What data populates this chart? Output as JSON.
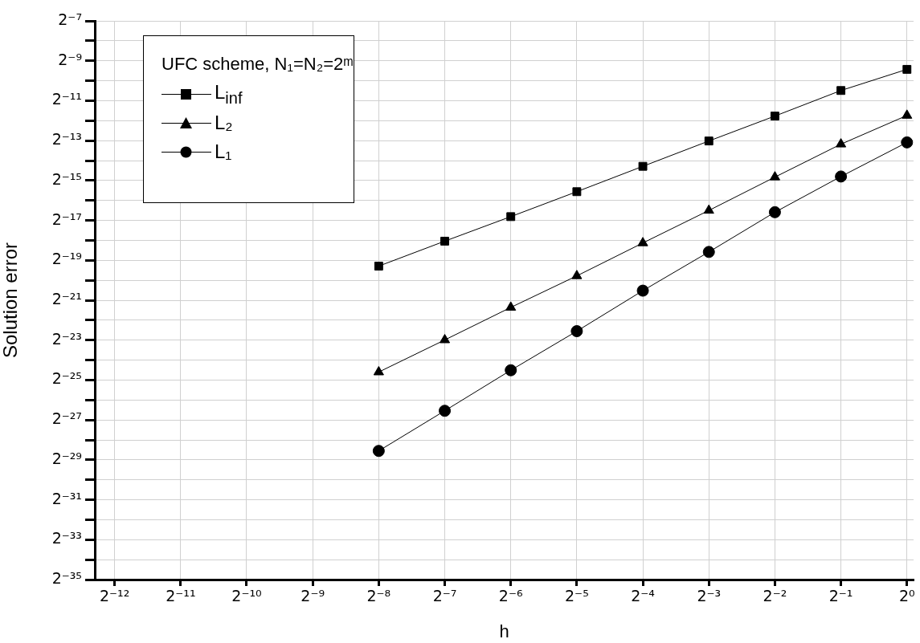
{
  "chart_data": {
    "type": "line",
    "xlabel": "h",
    "ylabel": "Solution error",
    "legend_title": "UFC scheme, N₁=N₂=2ᵐ",
    "legend": "top left",
    "grid": true,
    "log": "xy",
    "line_style": "solid",
    "x": [
      0.00390625,
      0.0078125,
      0.015625,
      0.03125,
      0.0625,
      0.125,
      0.25,
      0.5,
      1
    ],
    "series": [
      {
        "name": "L$_{inf}$",
        "color": "#000000",
        "marker": "square",
        "values": [
          1.56e-06,
          3.711e-06,
          8.702e-06,
          2.07e-05,
          4.993e-05,
          0.0001204,
          0.0002863,
          0.0006953,
          0.00145
        ]
      },
      {
        "name": "L₂",
        "color": "#000000",
        "marker": "triangle",
        "values": [
          3.933e-08,
          1.2e-07,
          3.716e-07,
          1.111e-06,
          3.486e-06,
          1.079e-05,
          3.433e-05,
          0.0001078,
          0.0002923
        ]
      },
      {
        "name": "L₁",
        "color": "#000000",
        "marker": "circle",
        "values": [
          2.544e-09,
          1.025e-08,
          4.186e-08,
          1.628e-07,
          6.651e-07,
          2.552e-06,
          1.014e-05,
          3.505e-05,
          0.0001147
        ]
      }
    ],
    "xlim": [
      0.00019832,
      1.0718
    ],
    "xticks": [
      {
        "value": 0.000244140625,
        "label": "2⁻¹²"
      },
      {
        "value": 0.00048828125,
        "label": "2⁻¹¹"
      },
      {
        "value": 0.0009765625,
        "label": "2⁻¹⁰"
      },
      {
        "value": 0.001953125,
        "label": "2⁻⁹"
      },
      {
        "value": 0.00390625,
        "label": "2⁻⁸"
      },
      {
        "value": 0.0078125,
        "label": "2⁻⁷"
      },
      {
        "value": 0.015625,
        "label": "2⁻⁶"
      },
      {
        "value": 0.03125,
        "label": "2⁻⁵"
      },
      {
        "value": 0.0625,
        "label": "2⁻⁴"
      },
      {
        "value": 0.125,
        "label": "2⁻³"
      },
      {
        "value": 0.25,
        "label": "2⁻²"
      },
      {
        "value": 0.5,
        "label": "2⁻¹"
      },
      {
        "value": 1,
        "label": "2⁰"
      }
    ],
    "ylim": [
      2.9103830456733704e-11,
      0.0078125
    ],
    "yticks": [
      {
        "value": 0.0078125,
        "label": "2⁻⁷"
      },
      {
        "value": 0.00390625,
        "label": null
      },
      {
        "value": 0.001953125,
        "label": "2⁻⁹"
      },
      {
        "value": 0.0009765625,
        "label": null
      },
      {
        "value": 0.00048828125,
        "label": "2⁻¹¹"
      },
      {
        "value": 0.000244140625,
        "label": null
      },
      {
        "value": 0.0001220703125,
        "label": "2⁻¹³"
      },
      {
        "value": 6.103515625e-05,
        "label": null
      },
      {
        "value": 3.0517578125e-05,
        "label": "2⁻¹⁵"
      },
      {
        "value": 1.52587890625e-05,
        "label": null
      },
      {
        "value": 7.62939453125e-06,
        "label": "2⁻¹⁷"
      },
      {
        "value": 3.814697265625e-06,
        "label": null
      },
      {
        "value": 1.9073486328125e-06,
        "label": "2⁻¹⁹"
      },
      {
        "value": 9.5367431640625e-07,
        "label": null
      },
      {
        "value": 4.76837158203125e-07,
        "label": "2⁻²¹"
      },
      {
        "value": 2.384185791015625e-07,
        "label": null
      },
      {
        "value": 1.1920928955078125e-07,
        "label": "2⁻²³"
      },
      {
        "value": 5.960464477539063e-08,
        "label": null
      },
      {
        "value": 2.9802322387695312e-08,
        "label": "2⁻²⁵"
      },
      {
        "value": 1.4901161193847656e-08,
        "label": null
      },
      {
        "value": 7.450580596923828e-09,
        "label": "2⁻²⁷"
      },
      {
        "value": 3.725290298461914e-09,
        "label": null
      },
      {
        "value": 1.862645149230957e-09,
        "label": "2⁻²⁹"
      },
      {
        "value": 9.313225746154785e-10,
        "label": null
      },
      {
        "value": 4.656612873077393e-10,
        "label": "2⁻³¹"
      },
      {
        "value": 2.3283064365386963e-10,
        "label": null
      },
      {
        "value": 1.1641532182693481e-10,
        "label": "2⁻³³"
      },
      {
        "value": 5.820766091346741e-11,
        "label": null
      },
      {
        "value": 2.9103830456733704e-11,
        "label": "2⁻³⁵"
      }
    ]
  }
}
